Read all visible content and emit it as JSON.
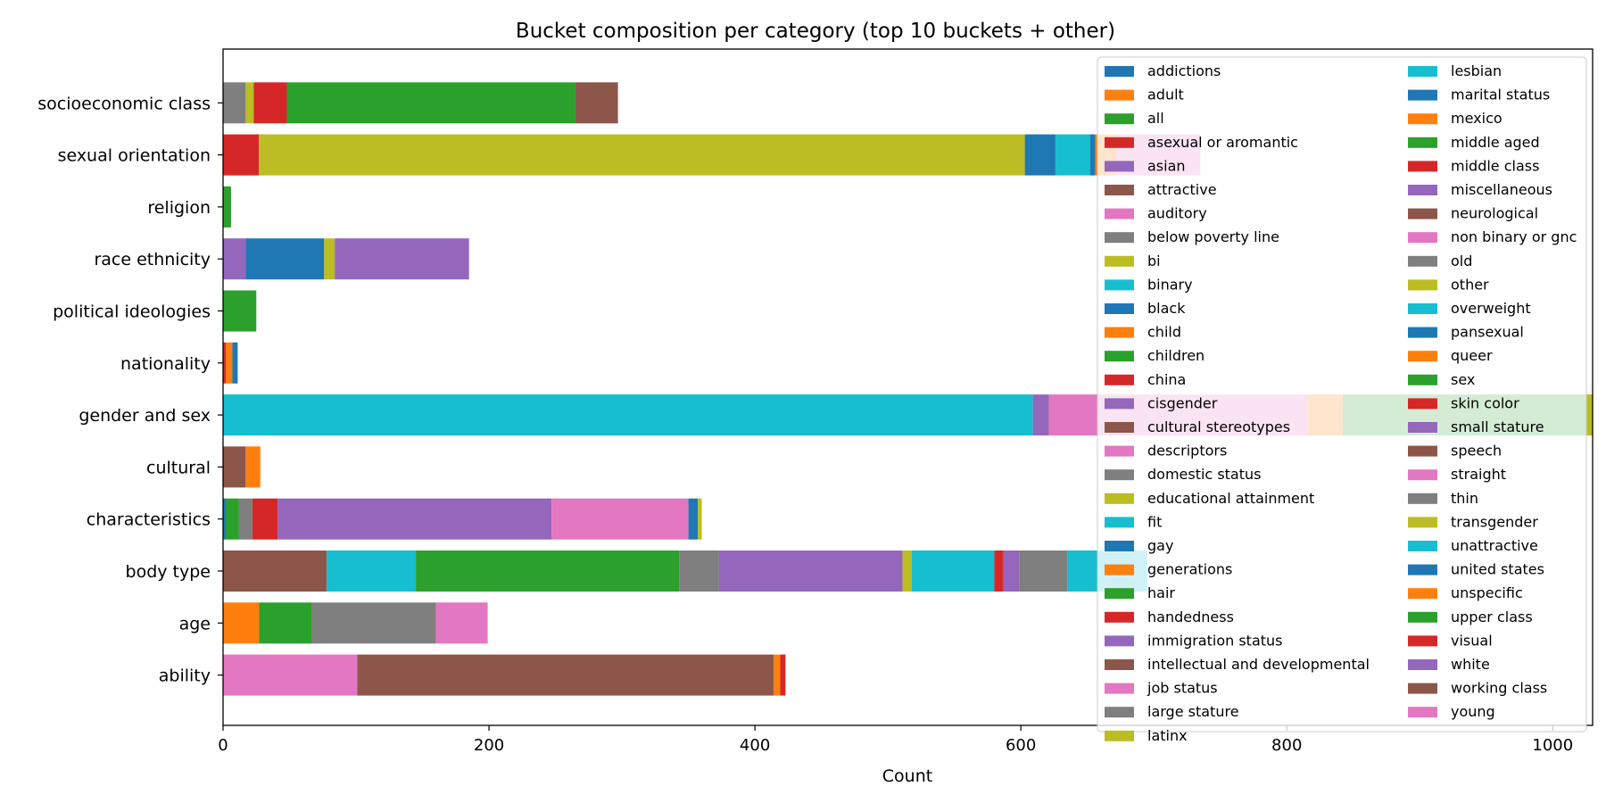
{
  "chart_data": {
    "type": "bar",
    "orientation": "horizontal",
    "stacked": true,
    "title": "Bucket composition per category (top 10 buckets + other)",
    "xlabel": "Count",
    "ylabel": "",
    "xlim": [
      0,
      1030
    ],
    "xticks": [
      0,
      200,
      400,
      600,
      800,
      1000
    ],
    "xtick_labels": [
      "0",
      "200",
      "400",
      "600",
      "800",
      "1000"
    ],
    "grid": false,
    "legend_position": "upper-right",
    "legend_columns": 2,
    "categories": [
      "ability",
      "age",
      "body type",
      "characteristics",
      "cultural",
      "gender and sex",
      "nationality",
      "political ideologies",
      "race ethnicity",
      "religion",
      "sexual orientation",
      "socioeconomic class"
    ],
    "legend": [
      {
        "name": "addictions",
        "color": "#1f77b4"
      },
      {
        "name": "adult",
        "color": "#ff7f0e"
      },
      {
        "name": "all",
        "color": "#2ca02c"
      },
      {
        "name": "asexual or aromantic",
        "color": "#d62728"
      },
      {
        "name": "asian",
        "color": "#9467bd"
      },
      {
        "name": "attractive",
        "color": "#8c564b"
      },
      {
        "name": "auditory",
        "color": "#e377c2"
      },
      {
        "name": "below poverty line",
        "color": "#7f7f7f"
      },
      {
        "name": "bi",
        "color": "#bcbd22"
      },
      {
        "name": "binary",
        "color": "#17becf"
      },
      {
        "name": "black",
        "color": "#1f77b4"
      },
      {
        "name": "child",
        "color": "#ff7f0e"
      },
      {
        "name": "children",
        "color": "#2ca02c"
      },
      {
        "name": "china",
        "color": "#d62728"
      },
      {
        "name": "cisgender",
        "color": "#9467bd"
      },
      {
        "name": "cultural stereotypes",
        "color": "#8c564b"
      },
      {
        "name": "descriptors",
        "color": "#e377c2"
      },
      {
        "name": "domestic status",
        "color": "#7f7f7f"
      },
      {
        "name": "educational attainment",
        "color": "#bcbd22"
      },
      {
        "name": "fit",
        "color": "#17becf"
      },
      {
        "name": "gay",
        "color": "#1f77b4"
      },
      {
        "name": "generations",
        "color": "#ff7f0e"
      },
      {
        "name": "hair",
        "color": "#2ca02c"
      },
      {
        "name": "handedness",
        "color": "#d62728"
      },
      {
        "name": "immigration status",
        "color": "#9467bd"
      },
      {
        "name": "intellectual and developmental",
        "color": "#8c564b"
      },
      {
        "name": "job status",
        "color": "#e377c2"
      },
      {
        "name": "large stature",
        "color": "#7f7f7f"
      },
      {
        "name": "latinx",
        "color": "#bcbd22"
      },
      {
        "name": "lesbian",
        "color": "#17becf"
      },
      {
        "name": "marital status",
        "color": "#1f77b4"
      },
      {
        "name": "mexico",
        "color": "#ff7f0e"
      },
      {
        "name": "middle aged",
        "color": "#2ca02c"
      },
      {
        "name": "middle class",
        "color": "#d62728"
      },
      {
        "name": "miscellaneous",
        "color": "#9467bd"
      },
      {
        "name": "neurological",
        "color": "#8c564b"
      },
      {
        "name": "non binary or gnc",
        "color": "#e377c2"
      },
      {
        "name": "old",
        "color": "#7f7f7f"
      },
      {
        "name": "other",
        "color": "#bcbd22"
      },
      {
        "name": "overweight",
        "color": "#17becf"
      },
      {
        "name": "pansexual",
        "color": "#1f77b4"
      },
      {
        "name": "queer",
        "color": "#ff7f0e"
      },
      {
        "name": "sex",
        "color": "#2ca02c"
      },
      {
        "name": "skin color",
        "color": "#d62728"
      },
      {
        "name": "small stature",
        "color": "#9467bd"
      },
      {
        "name": "speech",
        "color": "#8c564b"
      },
      {
        "name": "straight",
        "color": "#e377c2"
      },
      {
        "name": "thin",
        "color": "#7f7f7f"
      },
      {
        "name": "transgender",
        "color": "#bcbd22"
      },
      {
        "name": "unattractive",
        "color": "#17becf"
      },
      {
        "name": "united states",
        "color": "#1f77b4"
      },
      {
        "name": "unspecific",
        "color": "#ff7f0e"
      },
      {
        "name": "upper class",
        "color": "#2ca02c"
      },
      {
        "name": "visual",
        "color": "#d62728"
      },
      {
        "name": "white",
        "color": "#9467bd"
      },
      {
        "name": "working class",
        "color": "#8c564b"
      },
      {
        "name": "young",
        "color": "#e377c2"
      }
    ],
    "stacks": [
      {
        "category": "ability",
        "segments": [
          {
            "bucket": "descriptors",
            "value": 101
          },
          {
            "bucket": "intellectual and developmental",
            "value": 313
          },
          {
            "bucket": "unspecific",
            "value": 5
          },
          {
            "bucket": "visual",
            "value": 4
          }
        ]
      },
      {
        "category": "age",
        "segments": [
          {
            "bucket": "adult",
            "value": 27
          },
          {
            "bucket": "middle aged",
            "value": 40
          },
          {
            "bucket": "old",
            "value": 93
          },
          {
            "bucket": "young",
            "value": 39
          }
        ]
      },
      {
        "category": "body type",
        "segments": [
          {
            "bucket": "attractive",
            "value": 78
          },
          {
            "bucket": "fit",
            "value": 67
          },
          {
            "bucket": "hair",
            "value": 198
          },
          {
            "bucket": "large stature",
            "value": 30
          },
          {
            "bucket": "miscellaneous",
            "value": 138
          },
          {
            "bucket": "other",
            "value": 7
          },
          {
            "bucket": "overweight",
            "value": 62
          },
          {
            "bucket": "skin color",
            "value": 7
          },
          {
            "bucket": "small stature",
            "value": 12
          },
          {
            "bucket": "thin",
            "value": 36
          },
          {
            "bucket": "unattractive",
            "value": 60
          }
        ]
      },
      {
        "category": "characteristics",
        "segments": [
          {
            "bucket": "addictions",
            "value": 2
          },
          {
            "bucket": "children",
            "value": 10
          },
          {
            "bucket": "domestic status",
            "value": 10
          },
          {
            "bucket": "handedness",
            "value": 19
          },
          {
            "bucket": "immigration status",
            "value": 206
          },
          {
            "bucket": "job status",
            "value": 103
          },
          {
            "bucket": "marital status",
            "value": 7
          },
          {
            "bucket": "other",
            "value": 3
          }
        ]
      },
      {
        "category": "cultural",
        "segments": [
          {
            "bucket": "cultural stereotypes",
            "value": 17
          },
          {
            "bucket": "generations",
            "value": 11
          }
        ]
      },
      {
        "category": "gender and sex",
        "segments": [
          {
            "bucket": "binary",
            "value": 609
          },
          {
            "bucket": "cisgender",
            "value": 12
          },
          {
            "bucket": "non binary or gnc",
            "value": 195
          },
          {
            "bucket": "queer",
            "value": 26
          },
          {
            "bucket": "sex",
            "value": 183
          },
          {
            "bucket": "transgender",
            "value": 5
          }
        ]
      },
      {
        "category": "nationality",
        "segments": [
          {
            "bucket": "china",
            "value": 2
          },
          {
            "bucket": "mexico",
            "value": 5
          },
          {
            "bucket": "united states",
            "value": 4
          }
        ]
      },
      {
        "category": "political ideologies",
        "segments": [
          {
            "bucket": "all",
            "value": 25
          }
        ]
      },
      {
        "category": "race ethnicity",
        "segments": [
          {
            "bucket": "asian",
            "value": 17
          },
          {
            "bucket": "black",
            "value": 59
          },
          {
            "bucket": "latinx",
            "value": 8
          },
          {
            "bucket": "white",
            "value": 101
          }
        ]
      },
      {
        "category": "religion",
        "segments": [
          {
            "bucket": "all",
            "value": 6
          }
        ]
      },
      {
        "category": "sexual orientation",
        "segments": [
          {
            "bucket": "asexual or aromantic",
            "value": 27
          },
          {
            "bucket": "bi",
            "value": 576
          },
          {
            "bucket": "gay",
            "value": 23
          },
          {
            "bucket": "lesbian",
            "value": 26
          },
          {
            "bucket": "pansexual",
            "value": 4
          },
          {
            "bucket": "queer",
            "value": 16
          },
          {
            "bucket": "straight",
            "value": 63
          }
        ]
      },
      {
        "category": "socioeconomic class",
        "segments": [
          {
            "bucket": "below poverty line",
            "value": 17
          },
          {
            "bucket": "educational attainment",
            "value": 6
          },
          {
            "bucket": "middle class",
            "value": 25
          },
          {
            "bucket": "upper class",
            "value": 217
          },
          {
            "bucket": "working class",
            "value": 32
          }
        ]
      }
    ]
  }
}
